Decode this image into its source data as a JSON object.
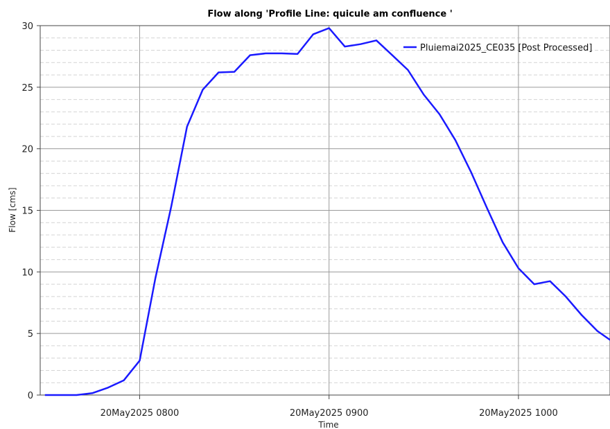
{
  "chart_data": {
    "type": "line",
    "title": "Flow along 'Profile Line: quicule am confluence '",
    "xlabel": "Time",
    "ylabel": "Flow [cms]",
    "ylim": [
      0,
      30
    ],
    "yticks": [
      0,
      5,
      10,
      15,
      20,
      25,
      30
    ],
    "xlim_minutes": [
      -31.5,
      149
    ],
    "xticks": [
      {
        "minute": 0,
        "label": "20May2025 0800"
      },
      {
        "minute": 60,
        "label": "20May2025 0900"
      },
      {
        "minute": 120,
        "label": "20May2025 1000"
      }
    ],
    "grid": true,
    "legend_position": "top-right",
    "series": [
      {
        "name": "Pluiemai2025_CE035 [Post Processed]",
        "color": "#1a1aff",
        "x_minutes": [
          -30,
          -25,
          -20,
          -15,
          -10,
          -5,
          0,
          5,
          10,
          15,
          20,
          25,
          30,
          35,
          40,
          45,
          50,
          55,
          60,
          65,
          70,
          75,
          80,
          85,
          90,
          95,
          100,
          105,
          110,
          115,
          120,
          125,
          130,
          135,
          140,
          145,
          150
        ],
        "values": [
          0,
          0,
          0,
          0.15,
          0.6,
          1.2,
          2.8,
          9.5,
          15.3,
          21.8,
          24.8,
          26.2,
          26.25,
          27.6,
          27.75,
          27.75,
          27.7,
          29.3,
          29.8,
          28.3,
          28.5,
          28.8,
          27.6,
          26.4,
          24.4,
          22.8,
          20.7,
          18.1,
          15.2,
          12.4,
          10.3,
          9,
          9.25,
          8,
          6.5,
          5.2,
          4.3
        ]
      }
    ]
  }
}
